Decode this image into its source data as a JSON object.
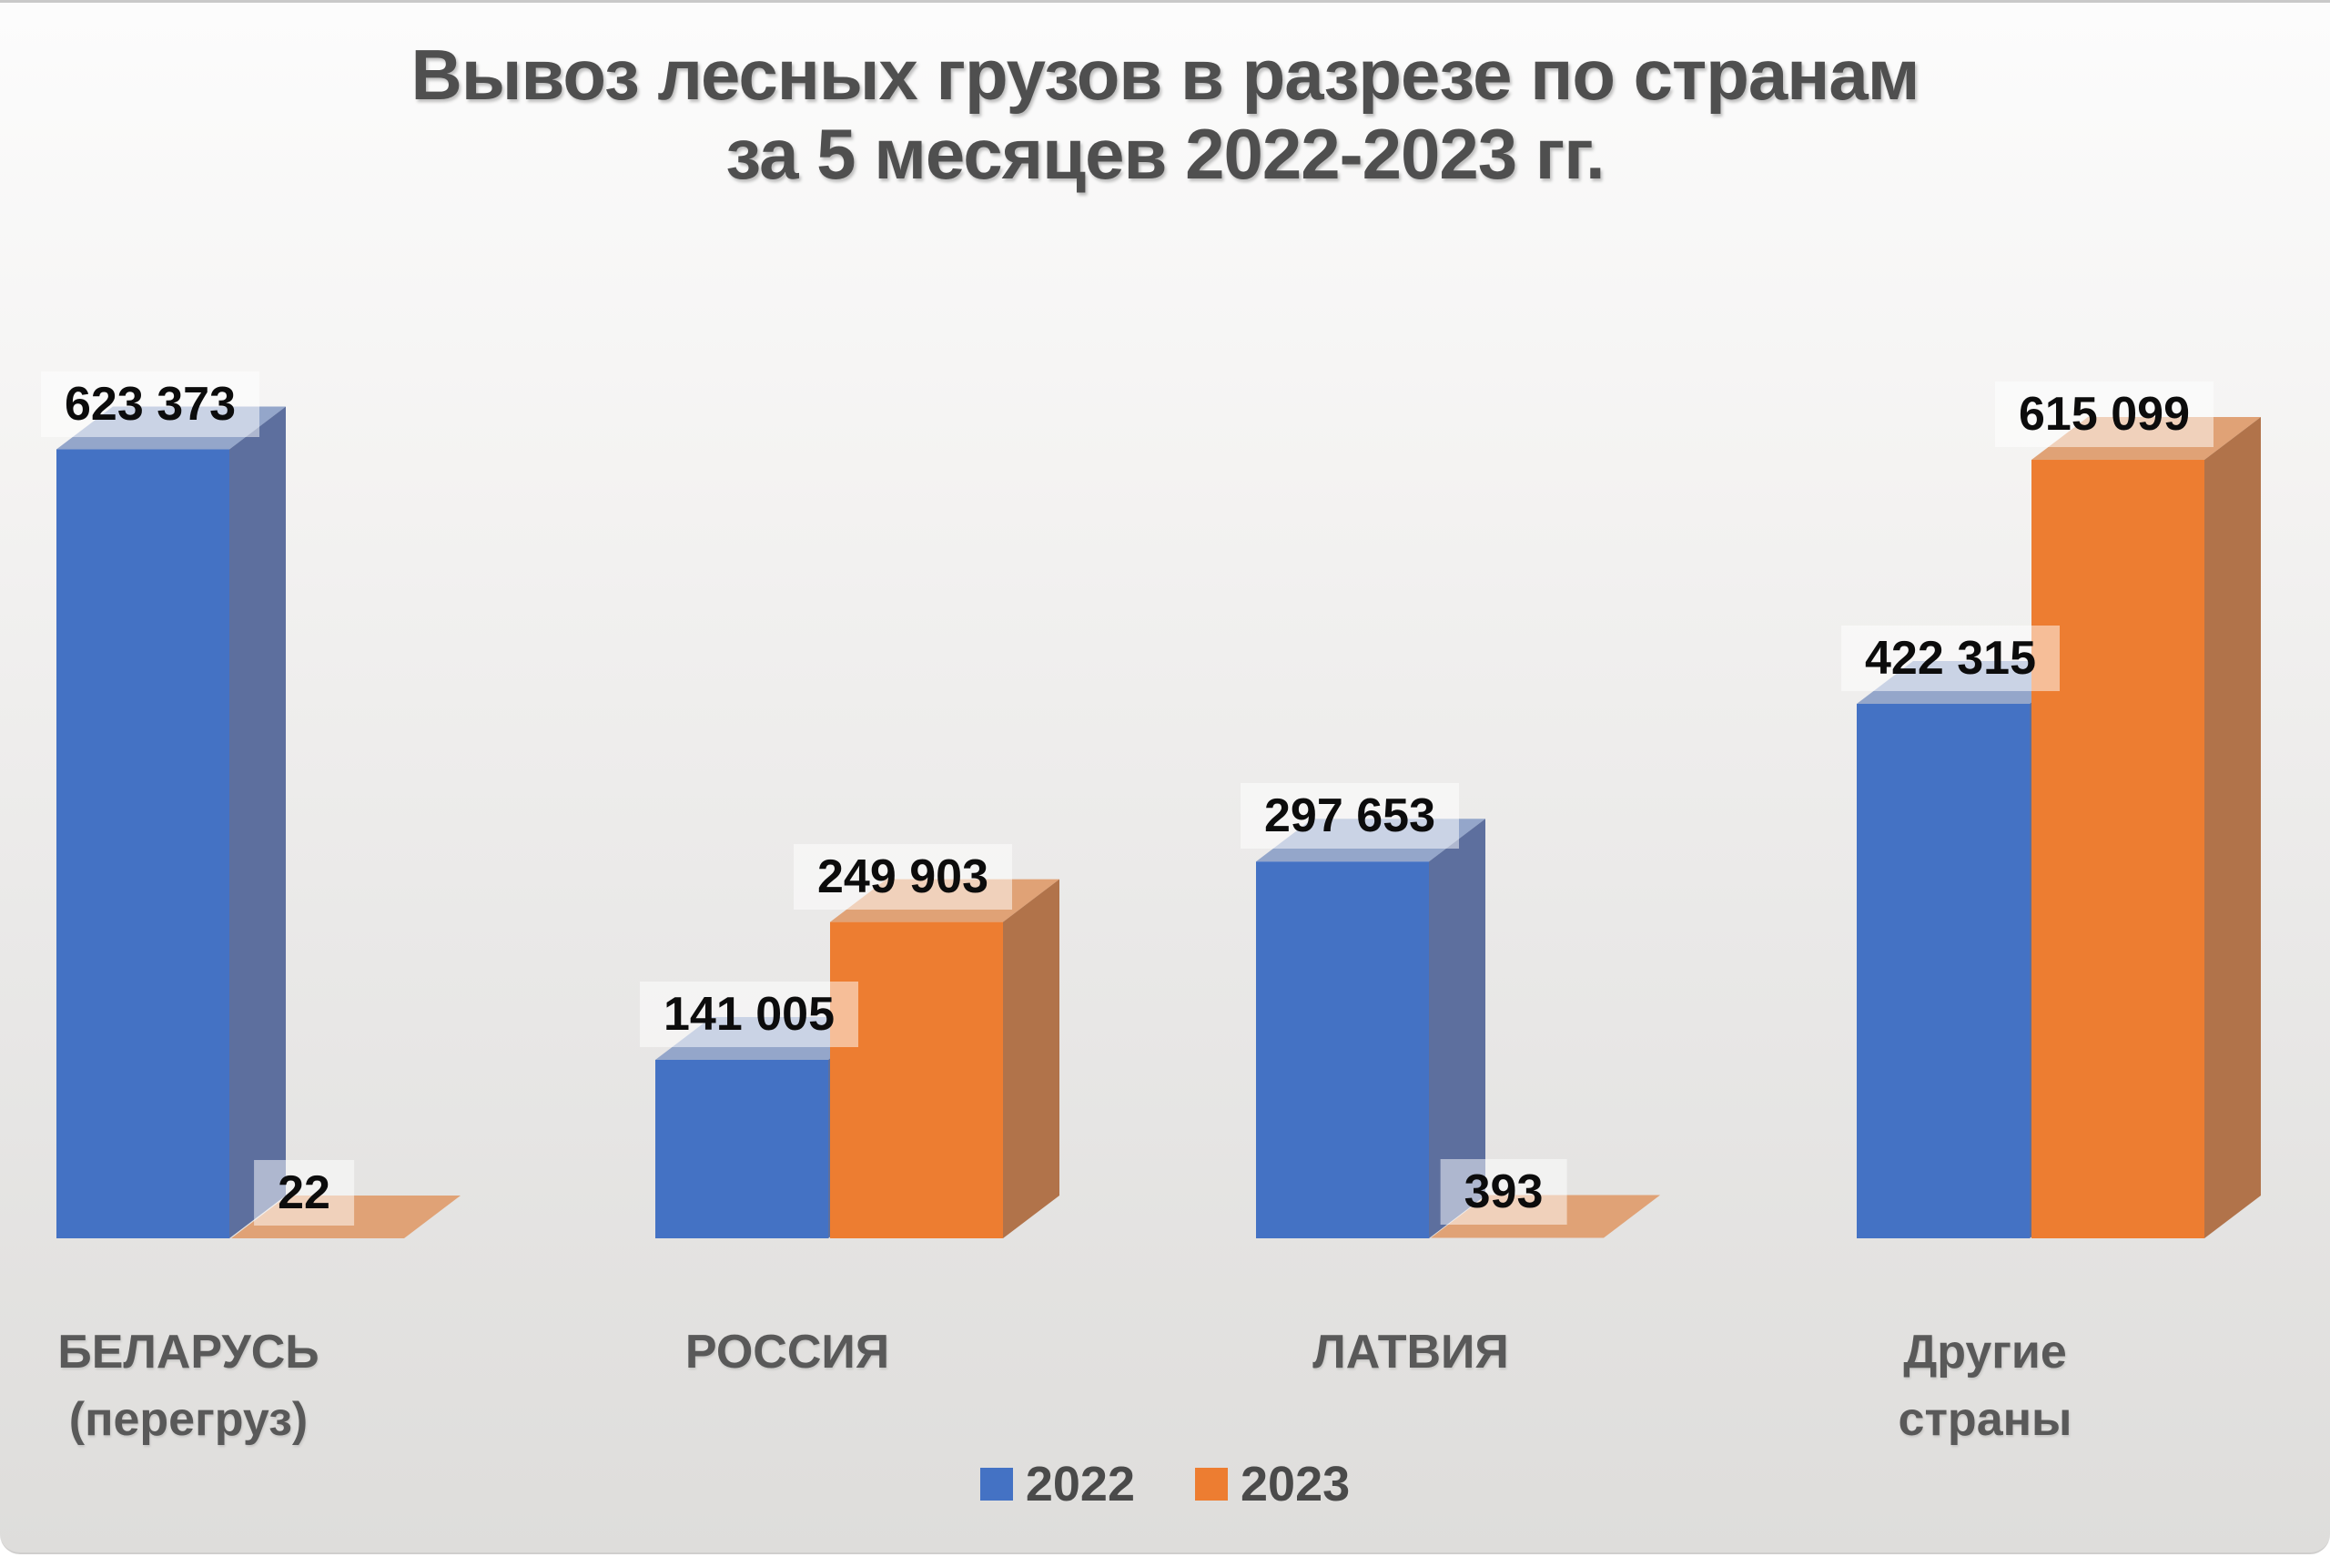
{
  "title": {
    "line1": "Вывоз лесных грузов в разрезе по странам",
    "line2": "за 5 месяцев 2022-2023 гг."
  },
  "chart_data": {
    "type": "bar",
    "variant": "3d-clustered-column",
    "title": "Вывоз лесных грузов в разрезе по странам за 5 месяцев 2022-2023 гг.",
    "categories": [
      "БЕЛАРУСЬ\n(перегруз)",
      "РОССИЯ",
      "ЛАТВИЯ",
      "Другие страны"
    ],
    "series": [
      {
        "name": "2022",
        "color": "#4472c4",
        "top_color": "#94a6ca",
        "side_color": "#5d6f9e",
        "values": [
          623373,
          141005,
          297653,
          422315
        ],
        "labels": [
          "623 373",
          "141 005",
          "297 653",
          "422 315"
        ]
      },
      {
        "name": "2023",
        "color": "#ed7d31",
        "top_color": "#e0a276",
        "side_color": "#b1734a",
        "values": [
          22,
          249903,
          393,
          615099
        ],
        "labels": [
          "22",
          "249 903",
          "393",
          "615 099"
        ]
      }
    ],
    "ylim": [
      0,
      650000
    ],
    "axes_visible": false,
    "gridlines": false,
    "data_labels": true,
    "legend_position": "bottom"
  }
}
